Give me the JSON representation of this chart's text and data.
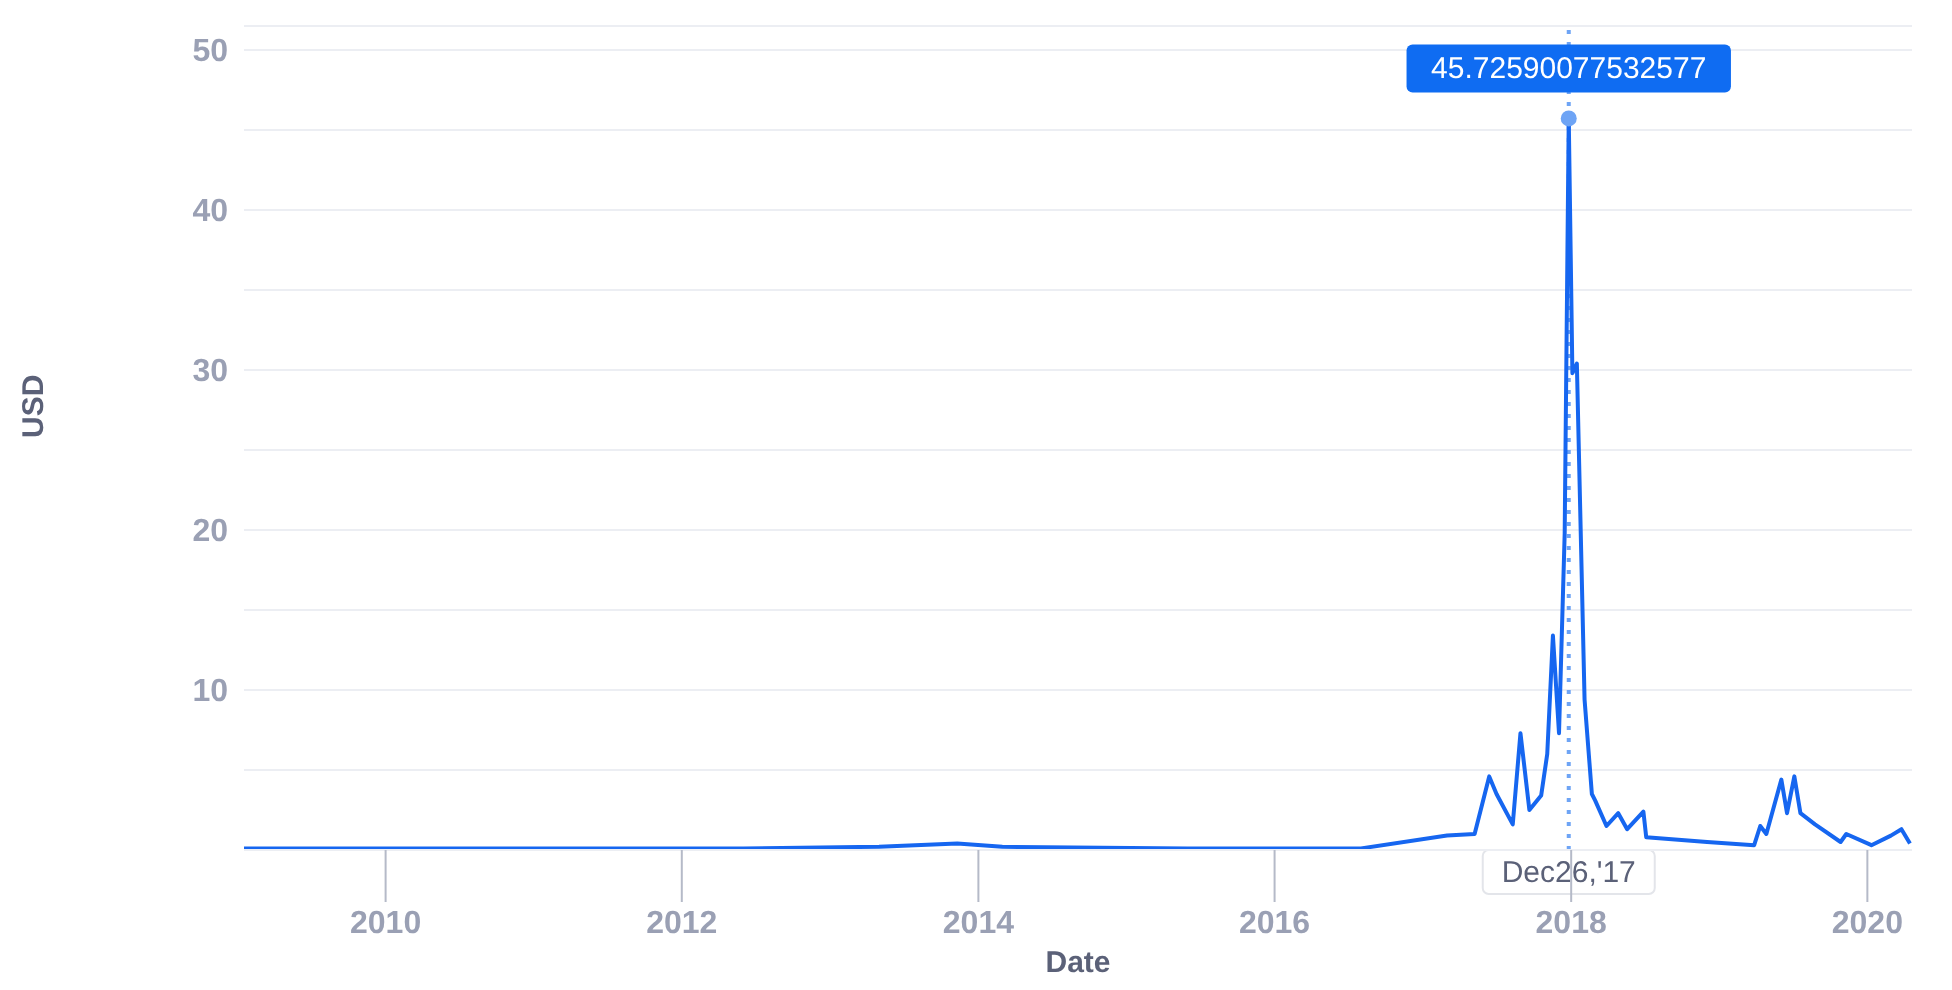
{
  "chart_data": {
    "type": "line",
    "xlabel": "Date",
    "ylabel": "USD",
    "x": [
      "2009-01-17",
      "2010-06-01",
      "2011-06-01",
      "2012-06-01",
      "2013-05-01",
      "2013-11-10",
      "2014-03-01",
      "2015-06-01",
      "2016-01-01",
      "2016-08-01",
      "2017-03-01",
      "2017-05-08",
      "2017-06-13",
      "2017-07-01",
      "2017-08-10",
      "2017-08-29",
      "2017-09-20",
      "2017-10-19",
      "2017-11-03",
      "2017-11-17",
      "2017-12-02",
      "2017-12-16",
      "2017-12-26",
      "2018-01-04",
      "2018-01-15",
      "2018-02-03",
      "2018-02-21",
      "2018-03-01",
      "2018-03-29",
      "2018-04-27",
      "2018-05-19",
      "2018-06-28",
      "2018-07-05",
      "2018-12-02",
      "2019-03-28",
      "2019-04-12",
      "2019-04-27",
      "2019-06-03",
      "2019-06-17",
      "2019-07-05",
      "2019-07-20",
      "2019-08-25",
      "2019-10-27",
      "2019-11-10",
      "2020-01-11",
      "2020-02-28",
      "2020-03-25",
      "2020-04-15"
    ],
    "series": [
      {
        "color": "#1666f0",
        "values": [
          0.1,
          0.1,
          0.1,
          0.1,
          0.2,
          0.4,
          0.2,
          0.1,
          0.1,
          0.1,
          0.9,
          1.0,
          4.6,
          3.5,
          1.6,
          7.3,
          2.5,
          3.4,
          6.0,
          13.4,
          7.3,
          19.8,
          45.72590077532577,
          29.8,
          30.4,
          9.4,
          3.5,
          3.1,
          1.5,
          2.3,
          1.3,
          2.4,
          0.8,
          0.5,
          0.3,
          1.5,
          1.0,
          4.4,
          2.3,
          4.6,
          2.3,
          1.6,
          0.5,
          1.0,
          0.3,
          0.9,
          1.3,
          0.4
        ]
      }
    ],
    "xlim": [
      "2009-01-17",
      "2020-04-20"
    ],
    "xticks": [
      "2010",
      "2012",
      "2014",
      "2016",
      "2018",
      "2020"
    ],
    "ylim": [
      0,
      51.5
    ],
    "yticks": [
      {
        "value": 5,
        "label": null
      },
      10,
      {
        "value": 15,
        "label": null
      },
      20,
      {
        "value": 25,
        "label": null
      },
      30,
      {
        "value": 35,
        "label": null
      },
      40,
      {
        "value": 45,
        "label": null
      },
      50
    ],
    "grid": "y",
    "marker": "none",
    "line_style": "solid",
    "ref_lines": [
      {
        "axis": "x",
        "value": "2017-12-26",
        "label": "Dec26,'17",
        "color": "#6ea4f5",
        "line_style": "dotted"
      }
    ],
    "annotations": [
      {
        "text": "45.72590077532577",
        "x": "2017-12-26",
        "y": 45.72590077532577
      }
    ]
  }
}
